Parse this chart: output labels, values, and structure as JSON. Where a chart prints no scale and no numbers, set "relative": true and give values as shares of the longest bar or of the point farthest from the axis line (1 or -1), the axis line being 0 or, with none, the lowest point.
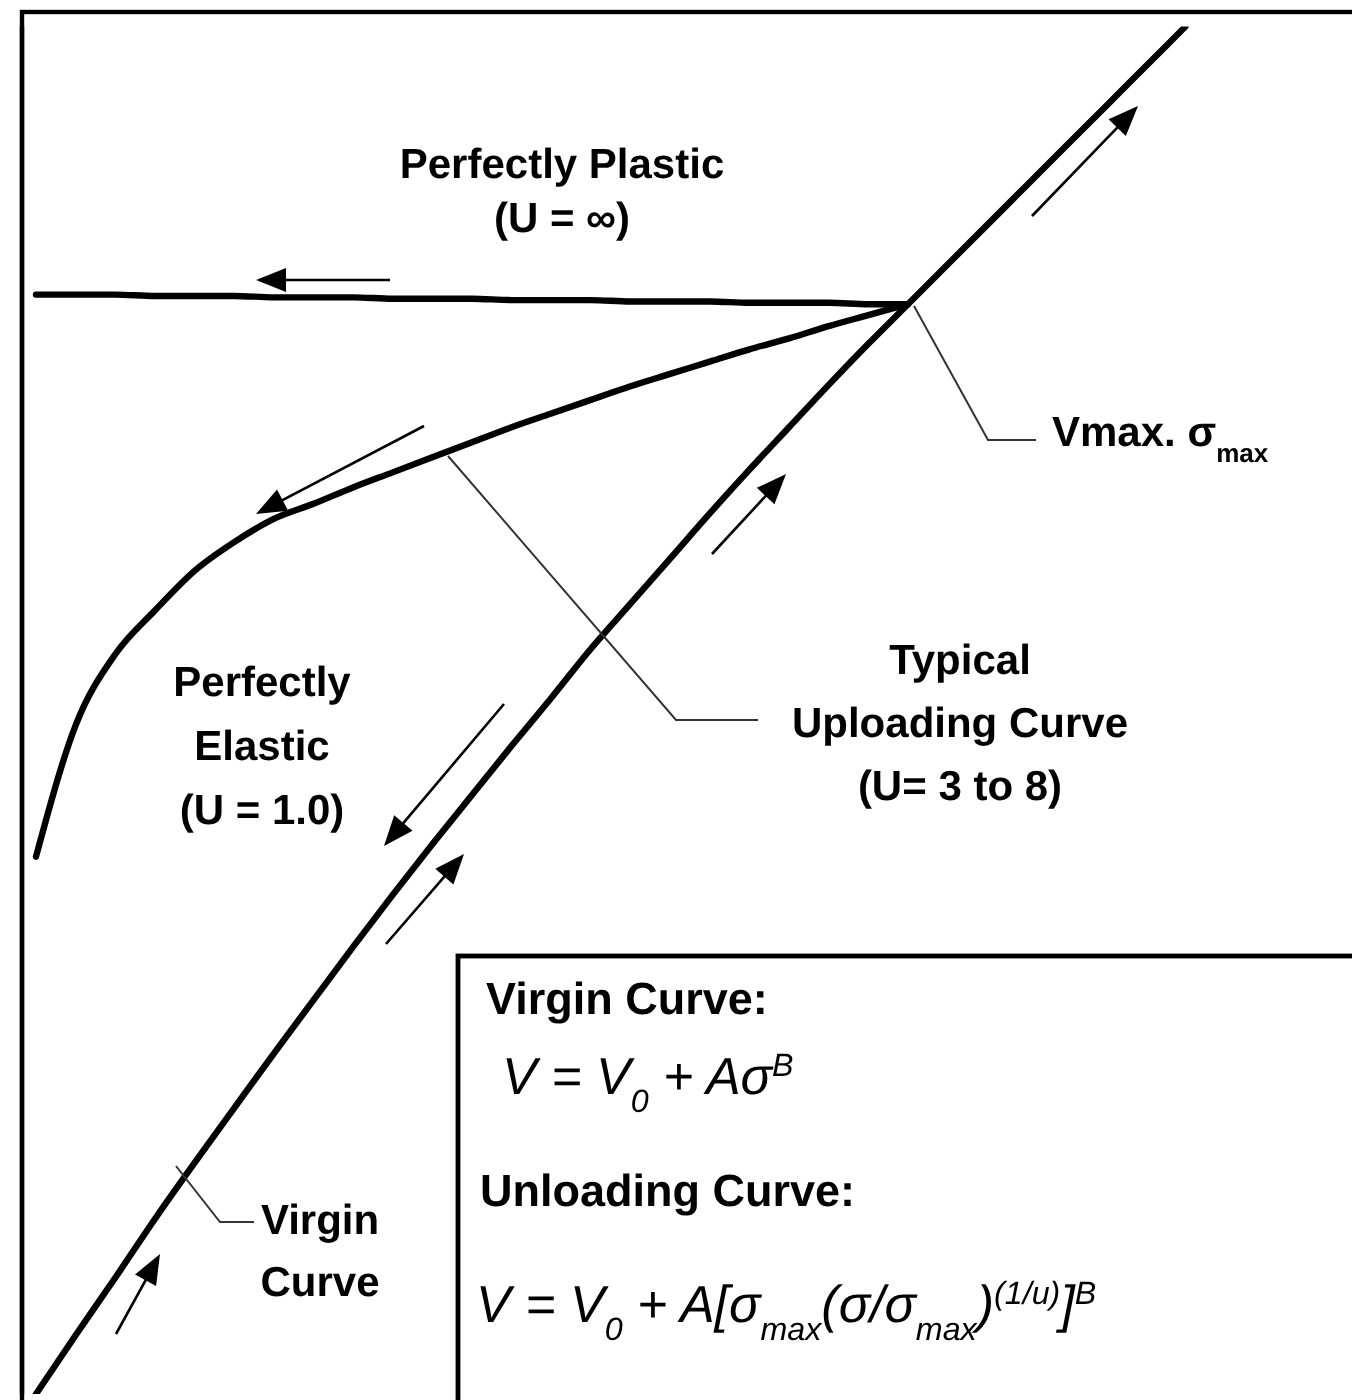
{
  "chart_data": {
    "type": "line",
    "relative": true,
    "tick_labels": false,
    "categories": [
      null,
      null,
      null,
      null,
      null,
      null,
      null,
      null,
      null,
      null,
      null,
      null,
      null,
      null,
      null,
      null,
      null,
      null,
      null,
      null,
      null,
      null,
      null,
      null,
      null,
      null,
      null,
      null,
      null,
      null
    ],
    "series": [
      {
        "name": "Virgin\nCurve",
        "color": "#000000",
        "values": [
          0,
          0.043,
          0.085,
          0.128,
          0.169,
          0.209,
          0.249,
          0.288,
          0.327,
          0.365,
          0.402,
          0.438,
          0.474,
          0.509,
          0.545,
          0.578,
          0.611,
          0.644,
          0.676,
          0.707,
          0.738,
          0.768,
          0.797,
          0.826,
          0.855,
          0.884,
          0.913,
          0.942,
          0.971,
          1
        ]
      },
      {
        "name": "Perfectly Plastic\n(U = ∞)",
        "color": "#000000",
        "values": [
          0.804,
          0.804,
          0.804,
          0.803,
          0.803,
          0.803,
          0.802,
          0.802,
          0.802,
          0.801,
          0.801,
          0.801,
          0.8,
          0.8,
          0.8,
          0.799,
          0.799,
          0.799,
          0.798,
          0.798,
          0.798,
          0.797,
          0.797,
          null,
          null,
          null,
          null,
          null,
          null,
          null
        ]
      },
      {
        "color": "#000000",
        "values": [
          0.393,
          0.489,
          0.541,
          0.573,
          0.602,
          0.623,
          0.64,
          0.651,
          0.663,
          0.674,
          0.685,
          0.696,
          0.707,
          0.717,
          0.727,
          0.737,
          0.746,
          0.755,
          0.764,
          0.772,
          0.781,
          0.789,
          0.797,
          null,
          null,
          null,
          null,
          null,
          null,
          null
        ]
      }
    ],
    "annotations": [
      "Perfectly\nElastic\n(U = 1.0)",
      "Vmax. σ$_{max}$",
      "Virgin Curve:",
      "V = V$_{0}$ + Aσ$^{B}$",
      "Unloading Curve:",
      "V = V$_{0}$ + A[σ$_{max}$(σ/σ$_{max}$)$^{(1/u)}$]$^{B}$",
      "Typical\nUploading Curve\n(U= 3 to 8)"
    ]
  }
}
